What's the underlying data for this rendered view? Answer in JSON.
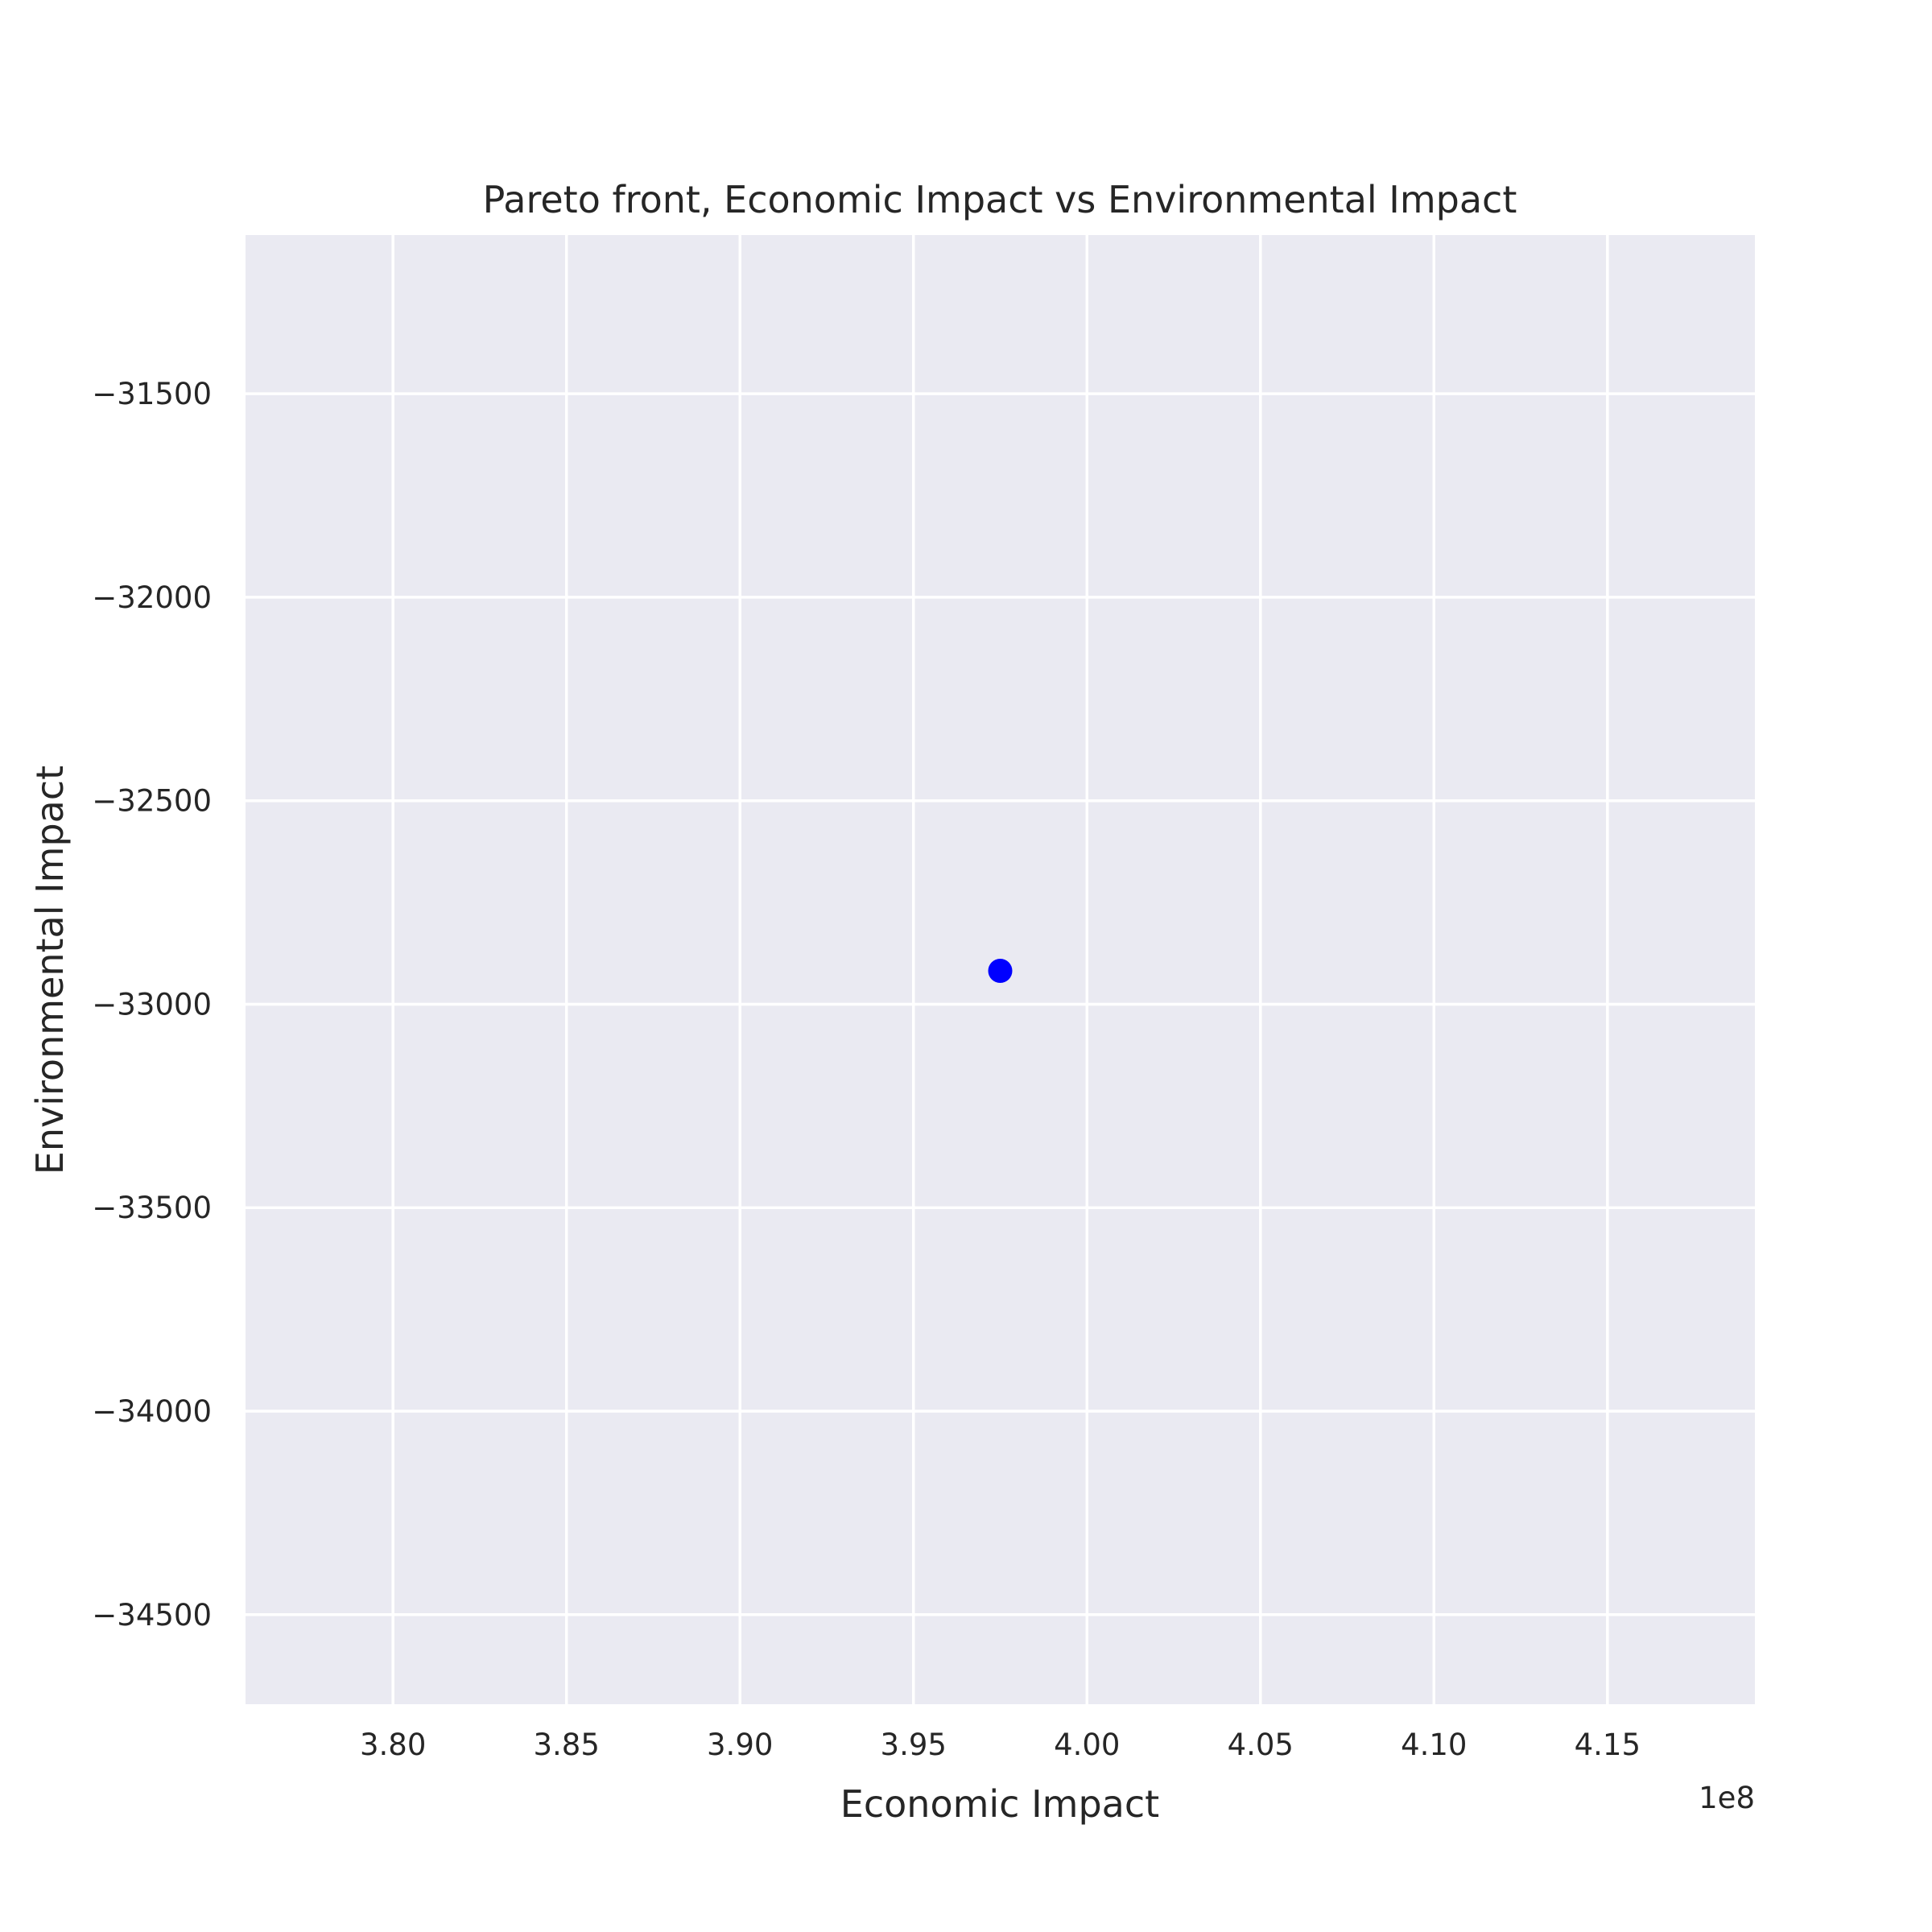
{
  "chart_data": {
    "type": "scatter",
    "title": "Pareto front, Economic Impact vs Environmental Impact",
    "xlabel": "Economic Impact",
    "ylabel": "Environmental Impact",
    "x_offset_label": "1e8",
    "xlim": [
      3.7575,
      4.1925
    ],
    "ylim": [
      -34720,
      -31110
    ],
    "x_ticks": [
      3.8,
      3.85,
      3.9,
      3.95,
      4.0,
      4.05,
      4.1,
      4.15
    ],
    "x_tick_labels": [
      "3.80",
      "3.85",
      "3.90",
      "3.95",
      "4.00",
      "4.05",
      "4.10",
      "4.15"
    ],
    "y_ticks": [
      -31500,
      -32000,
      -32500,
      -33000,
      -33500,
      -34000,
      -34500
    ],
    "y_tick_labels": [
      "−31500",
      "−32000",
      "−32500",
      "−33000",
      "−33500",
      "−34000",
      "−34500"
    ],
    "grid": true,
    "series": [
      {
        "points": [
          {
            "x": 3.975,
            "y": -32918
          }
        ]
      }
    ]
  },
  "colors": {
    "plot_background": "#eaeaf2",
    "grid": "#ffffff",
    "marker": "#0000ff",
    "text": "#262626"
  }
}
